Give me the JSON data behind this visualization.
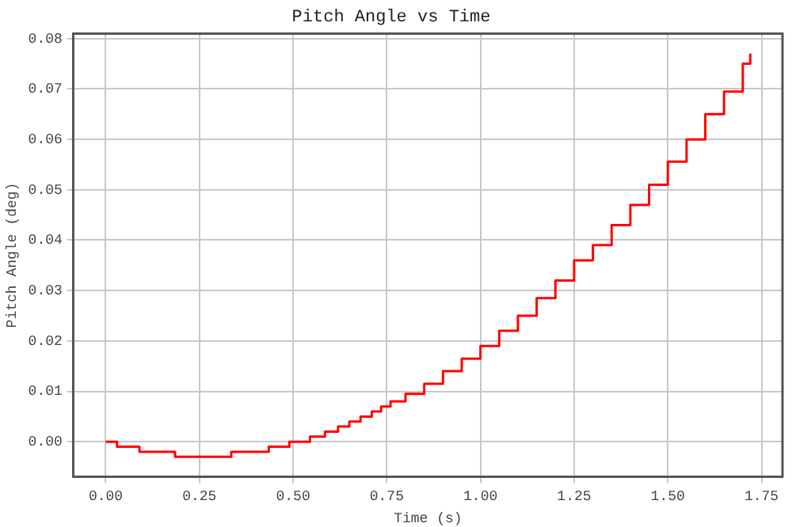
{
  "chart_data": {
    "type": "step",
    "title": "Pitch Angle vs Time",
    "xlabel": "Time (s)",
    "ylabel": "Pitch Angle (deg)",
    "series": [
      {
        "color": "#ff0000",
        "x": [
          0,
          0.03,
          0.09,
          0.185,
          0.335,
          0.435,
          0.49,
          0.545,
          0.585,
          0.62,
          0.65,
          0.68,
          0.71,
          0.735,
          0.76,
          0.8,
          0.85,
          0.9,
          0.95,
          1.0,
          1.05,
          1.1,
          1.15,
          1.2,
          1.25,
          1.3,
          1.35,
          1.4,
          1.45,
          1.5,
          1.55,
          1.6,
          1.65,
          1.7,
          1.72
        ],
        "values": [
          0,
          -0.001,
          -0.002,
          -0.003,
          -0.002,
          -0.001,
          0,
          0.001,
          0.002,
          0.003,
          0.004,
          0.005,
          0.006,
          0.007,
          0.008,
          0.0095,
          0.0115,
          0.014,
          0.0165,
          0.019,
          0.022,
          0.025,
          0.0285,
          0.032,
          0.036,
          0.039,
          0.043,
          0.047,
          0.051,
          0.0556,
          0.06,
          0.065,
          0.0695,
          0.075,
          0.077
        ]
      }
    ],
    "xlim": [
      -0.086,
      1.806
    ],
    "xticks": [
      {
        "value": 0,
        "label": "0.00"
      },
      {
        "value": 0.25,
        "label": "0.25"
      },
      {
        "value": 0.5,
        "label": "0.50"
      },
      {
        "value": 0.75,
        "label": "0.75"
      },
      {
        "value": 1,
        "label": "1.00"
      },
      {
        "value": 1.25,
        "label": "1.25"
      },
      {
        "value": 1.5,
        "label": "1.50"
      },
      {
        "value": 1.75,
        "label": "1.75"
      }
    ],
    "ylim": [
      -0.007,
      0.081
    ],
    "yticks": [
      {
        "value": 0,
        "label": "0.00"
      },
      0.01,
      0.02,
      0.03,
      0.04,
      0.05,
      0.06,
      0.07,
      0.08
    ],
    "grid": true,
    "legend": false
  }
}
